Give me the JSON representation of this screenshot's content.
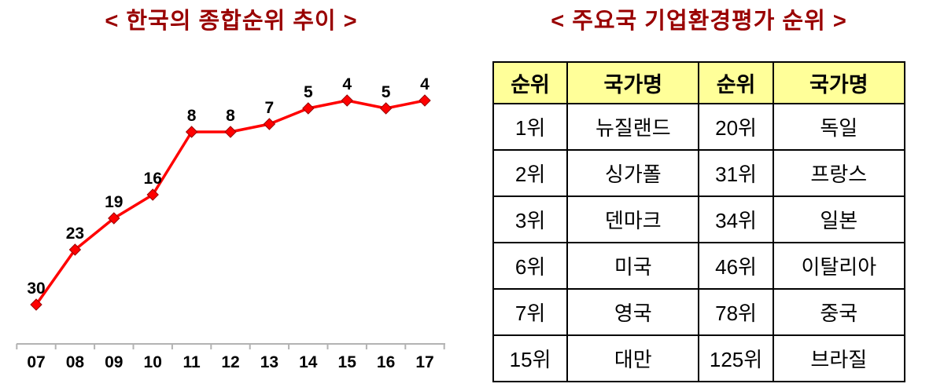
{
  "colors": {
    "title": "#990000",
    "line": "#FF0000",
    "marker_fill": "#FF0000",
    "marker_edge": "#990000",
    "axis": "#b3b3b3",
    "tick_label": "#000000",
    "data_label": "#000000",
    "table_header_bg": "#FFFF99",
    "table_border": "#000000"
  },
  "chart_data": {
    "type": "line",
    "title": "< 한국의 종합순위 추이 >",
    "categories": [
      "07",
      "08",
      "09",
      "10",
      "11",
      "12",
      "13",
      "14",
      "15",
      "16",
      "17"
    ],
    "values": [
      30,
      23,
      19,
      16,
      8,
      8,
      7,
      5,
      4,
      5,
      4
    ],
    "xlabel": "",
    "ylabel": "",
    "y_axis": {
      "visible": false,
      "inverted": true,
      "min": 0,
      "max": 34
    },
    "data_labels": true,
    "marker": "diamond",
    "legend": "none",
    "grid": false
  },
  "table": {
    "title": "< 주요국 기업환경평가 순위 >",
    "headers": [
      "순위",
      "국가명",
      "순위",
      "국가명"
    ],
    "rows": [
      [
        "1위",
        "뉴질랜드",
        "20위",
        "독일"
      ],
      [
        "2위",
        "싱가폴",
        "31위",
        "프랑스"
      ],
      [
        "3위",
        "덴마크",
        "34위",
        "일본"
      ],
      [
        "6위",
        "미국",
        "46위",
        "이탈리아"
      ],
      [
        "7위",
        "영국",
        "78위",
        "중국"
      ],
      [
        "15위",
        "대만",
        "125위",
        "브라질"
      ]
    ]
  }
}
